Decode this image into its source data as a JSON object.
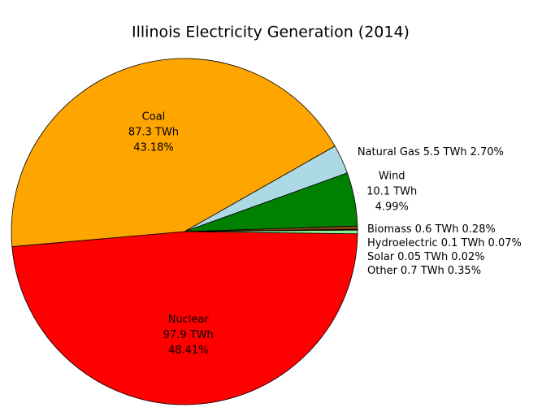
{
  "chart_data": {
    "type": "pie",
    "title": "Illinois Electricity Generation (2014)",
    "categories": [
      "Nuclear",
      "Other",
      "Solar",
      "Hydroelectric",
      "Biomass",
      "Wind",
      "Natural Gas",
      "Coal"
    ],
    "values": [
      97.9,
      0.7,
      0.05,
      0.1,
      0.6,
      10.1,
      5.5,
      87.3
    ],
    "value_labels": [
      "97.9 TWh",
      "0.7 TWh",
      "0.05 TWh",
      "0.1 TWh",
      "0.6 TWh",
      "10.1 TWh",
      "5.5 TWh",
      "87.3 TWh"
    ],
    "percentages": [
      48.41,
      0.35,
      0.02,
      0.07,
      0.28,
      4.99,
      2.7,
      43.18
    ],
    "percent_labels": [
      "48.41%",
      "0.35%",
      "0.02%",
      "0.07%",
      "0.28%",
      "4.99%",
      "2.70%",
      "43.18%"
    ],
    "colors": [
      "#ff0000",
      "#90ee90",
      "#ffd700",
      "#0000ff",
      "#8b4513",
      "#008000",
      "#add8e6",
      "#ffa500"
    ]
  }
}
